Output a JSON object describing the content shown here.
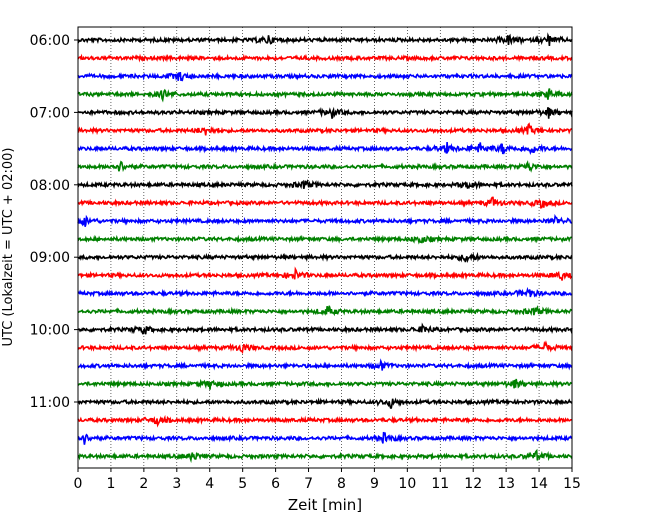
{
  "chart_data": {
    "type": "line",
    "xlabel": "Zeit  [min]",
    "ylabel": "UTC (Lokalzeit = UTC + 02:00)",
    "xlim": [
      0,
      15
    ],
    "x_ticks": [
      0,
      1,
      2,
      3,
      4,
      5,
      6,
      7,
      8,
      9,
      10,
      11,
      12,
      13,
      14,
      15
    ],
    "x_tick_labels": [
      "0",
      "1",
      "2",
      "3",
      "4",
      "5",
      "6",
      "7",
      "8",
      "9",
      "10",
      "11",
      "12",
      "13",
      "14",
      "15"
    ],
    "y_tick_labels": [
      "06:00",
      "07:00",
      "08:00",
      "09:00",
      "10:00",
      "11:00"
    ],
    "y_tick_traces": [
      0,
      4,
      8,
      12,
      16,
      20
    ],
    "grid": "vertical dotted lines at each minute",
    "trace_count": 24,
    "trace_interval_min": 15,
    "trace_colors": [
      "#000000",
      "#ff0000",
      "#0000ff",
      "#008000"
    ],
    "traces": [
      {
        "start": "06:00",
        "color": "#000000",
        "events": [
          5.8,
          13.1,
          14.3
        ]
      },
      {
        "start": "06:15",
        "color": "#ff0000",
        "events": []
      },
      {
        "start": "06:30",
        "color": "#0000ff",
        "events": [
          3.1
        ]
      },
      {
        "start": "06:45",
        "color": "#008000",
        "events": [
          2.6,
          14.3
        ]
      },
      {
        "start": "07:00",
        "color": "#000000",
        "events": [
          7.7,
          14.3
        ]
      },
      {
        "start": "07:15",
        "color": "#ff0000",
        "events": [
          3.9,
          13.7
        ]
      },
      {
        "start": "07:30",
        "color": "#0000ff",
        "events": [
          11.2,
          12.2,
          12.9,
          13.8
        ]
      },
      {
        "start": "07:45",
        "color": "#008000",
        "events": [
          1.3,
          13.7
        ]
      },
      {
        "start": "08:00",
        "color": "#000000",
        "events": [
          6.9,
          11.9
        ]
      },
      {
        "start": "08:15",
        "color": "#ff0000",
        "events": [
          12.6,
          14.1
        ]
      },
      {
        "start": "08:30",
        "color": "#0000ff",
        "events": [
          0.2,
          14.5
        ]
      },
      {
        "start": "08:45",
        "color": "#008000",
        "events": [
          10.4
        ]
      },
      {
        "start": "09:00",
        "color": "#000000",
        "events": [
          11.8
        ]
      },
      {
        "start": "09:15",
        "color": "#ff0000",
        "events": [
          6.6,
          14.7
        ]
      },
      {
        "start": "09:30",
        "color": "#0000ff",
        "events": [
          13.7
        ]
      },
      {
        "start": "09:45",
        "color": "#008000",
        "events": [
          7.6,
          13.9
        ]
      },
      {
        "start": "10:00",
        "color": "#000000",
        "events": [
          2.0,
          10.5
        ]
      },
      {
        "start": "10:15",
        "color": "#ff0000",
        "events": [
          5.0,
          14.2
        ]
      },
      {
        "start": "10:30",
        "color": "#0000ff",
        "events": [
          9.2
        ]
      },
      {
        "start": "10:45",
        "color": "#008000",
        "events": [
          4.0,
          13.3
        ]
      },
      {
        "start": "11:00",
        "color": "#000000",
        "events": [
          9.5
        ]
      },
      {
        "start": "11:15",
        "color": "#ff0000",
        "events": [
          2.4
        ]
      },
      {
        "start": "11:30",
        "color": "#0000ff",
        "events": [
          0.2,
          9.3
        ]
      },
      {
        "start": "11:45",
        "color": "#008000",
        "events": [
          3.5,
          13.9
        ]
      }
    ]
  }
}
